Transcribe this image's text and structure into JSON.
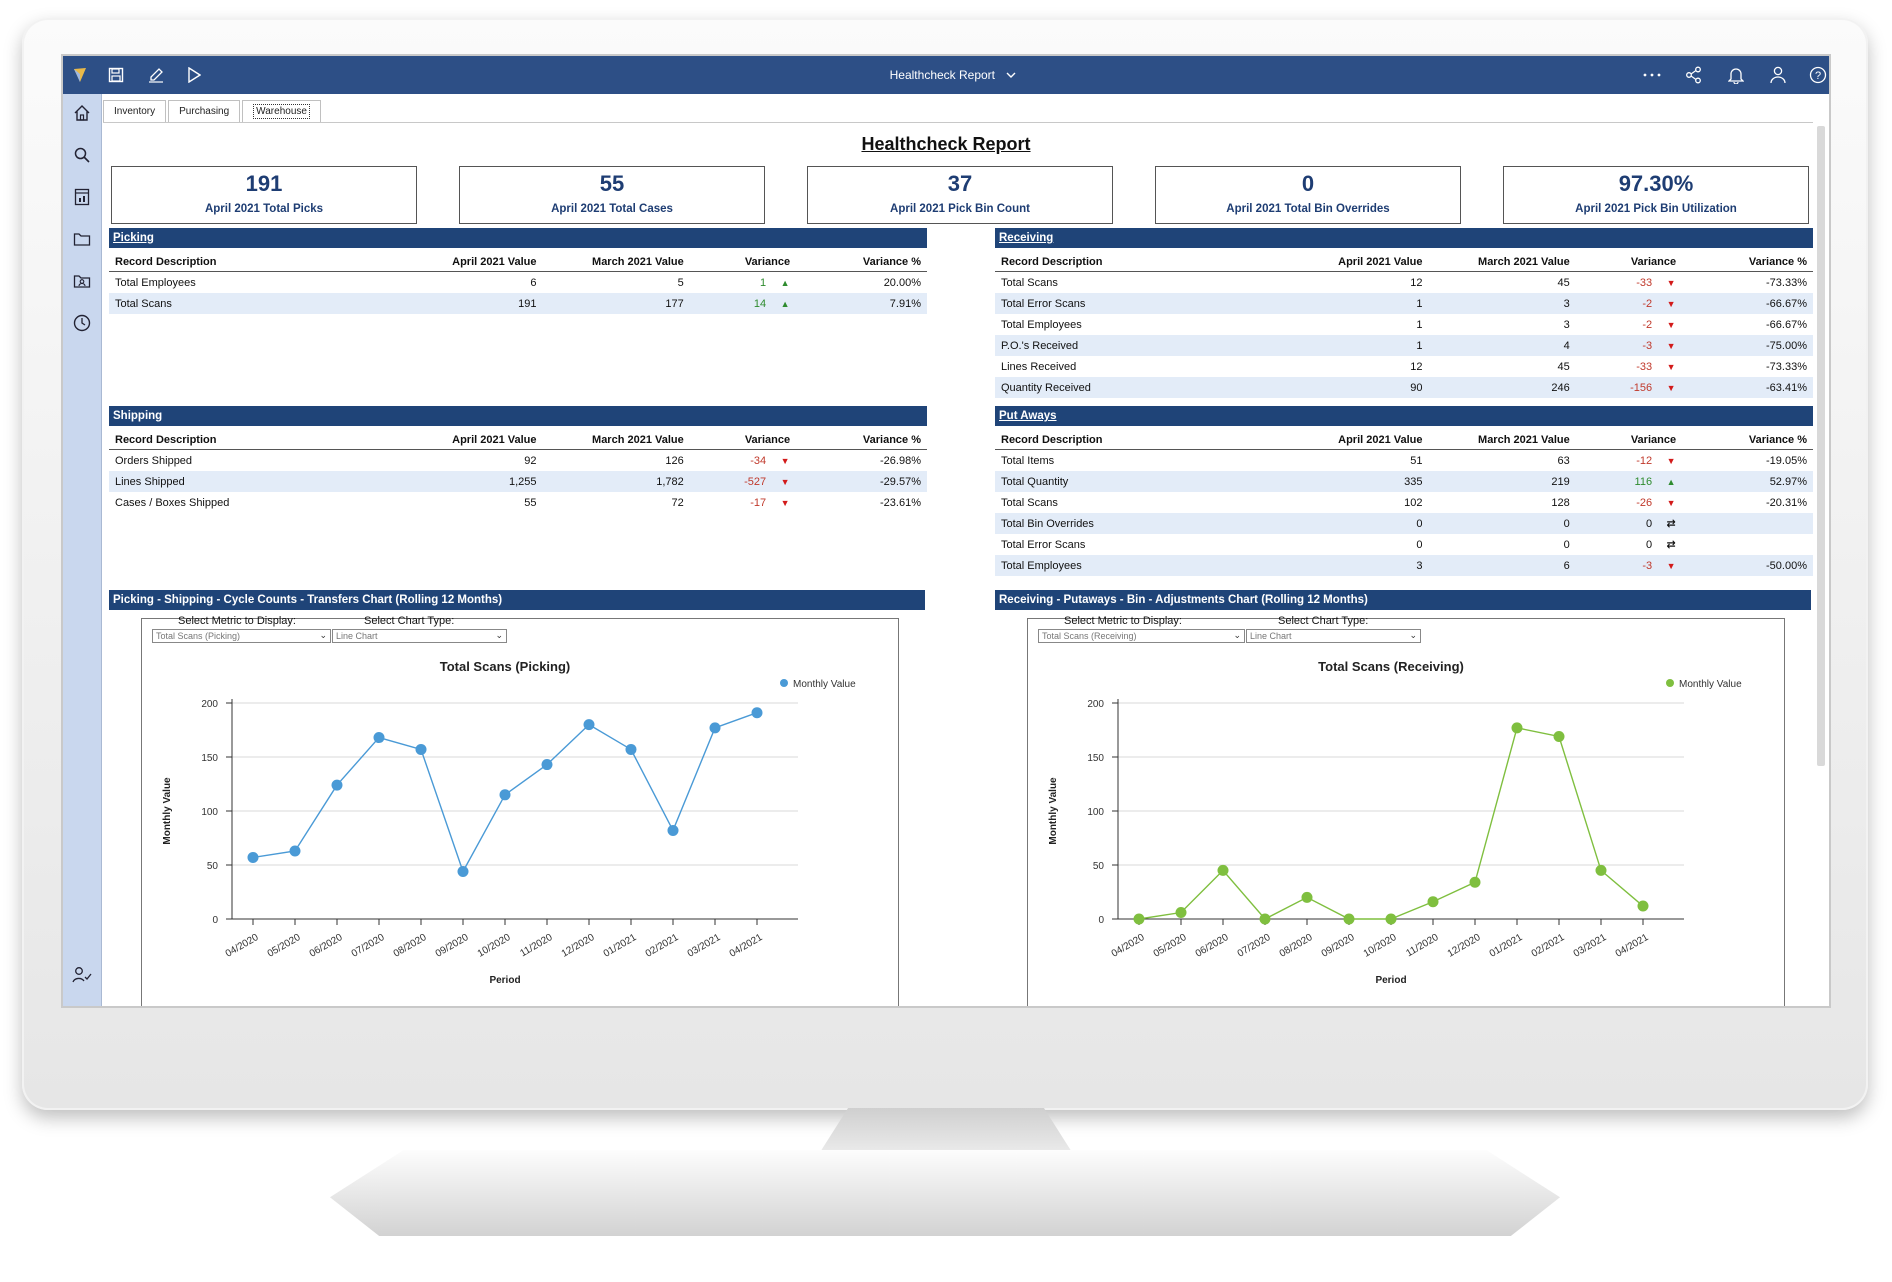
{
  "app": {
    "title": "Healthcheck Report"
  },
  "tabs": [
    "Inventory",
    "Purchasing",
    "Warehouse"
  ],
  "report_title": "Healthcheck Report",
  "kpis": [
    {
      "value": "191",
      "label": "April 2021 Total Picks"
    },
    {
      "value": "55",
      "label": "April 2021 Total Cases"
    },
    {
      "value": "37",
      "label": "April 2021 Pick Bin Count"
    },
    {
      "value": "0",
      "label": "April 2021 Total Bin Overrides"
    },
    {
      "value": "97.30%",
      "label": "April 2021 Pick Bin Utilization"
    }
  ],
  "columns": [
    "Record Description",
    "April 2021 Value",
    "March 2021 Value",
    "Variance",
    "Variance %"
  ],
  "sections": {
    "picking": {
      "title": "Picking",
      "rows": [
        {
          "desc": "Total Employees",
          "apr": "6",
          "mar": "5",
          "var": "1",
          "dir": "up",
          "pct": "20.00%"
        },
        {
          "desc": "Total Scans",
          "apr": "191",
          "mar": "177",
          "var": "14",
          "dir": "up",
          "pct": "7.91%"
        }
      ]
    },
    "shipping": {
      "title": "Shipping",
      "rows": [
        {
          "desc": "Orders Shipped",
          "apr": "92",
          "mar": "126",
          "var": "-34",
          "dir": "down",
          "pct": "-26.98%"
        },
        {
          "desc": "Lines Shipped",
          "apr": "1,255",
          "mar": "1,782",
          "var": "-527",
          "dir": "down",
          "pct": "-29.57%"
        },
        {
          "desc": "Cases / Boxes Shipped",
          "apr": "55",
          "mar": "72",
          "var": "-17",
          "dir": "down",
          "pct": "-23.61%"
        }
      ]
    },
    "receiving": {
      "title": "Receiving",
      "rows": [
        {
          "desc": "Total Scans",
          "apr": "12",
          "mar": "45",
          "var": "-33",
          "dir": "down",
          "pct": "-73.33%"
        },
        {
          "desc": "Total Error Scans",
          "apr": "1",
          "mar": "3",
          "var": "-2",
          "dir": "down",
          "pct": "-66.67%"
        },
        {
          "desc": "Total Employees",
          "apr": "1",
          "mar": "3",
          "var": "-2",
          "dir": "down",
          "pct": "-66.67%"
        },
        {
          "desc": "P.O.'s Received",
          "apr": "1",
          "mar": "4",
          "var": "-3",
          "dir": "down",
          "pct": "-75.00%"
        },
        {
          "desc": "Lines Received",
          "apr": "12",
          "mar": "45",
          "var": "-33",
          "dir": "down",
          "pct": "-73.33%"
        },
        {
          "desc": "Quantity Received",
          "apr": "90",
          "mar": "246",
          "var": "-156",
          "dir": "down",
          "pct": "-63.41%"
        }
      ]
    },
    "putaways": {
      "title": "Put Aways",
      "rows": [
        {
          "desc": "Total Items",
          "apr": "51",
          "mar": "63",
          "var": "-12",
          "dir": "down",
          "pct": "-19.05%"
        },
        {
          "desc": "Total Quantity",
          "apr": "335",
          "mar": "219",
          "var": "116",
          "dir": "up",
          "pct": "52.97%"
        },
        {
          "desc": "Total Scans",
          "apr": "102",
          "mar": "128",
          "var": "-26",
          "dir": "down",
          "pct": "-20.31%"
        },
        {
          "desc": "Total Bin Overrides",
          "apr": "0",
          "mar": "0",
          "var": "0",
          "dir": "flat",
          "pct": ""
        },
        {
          "desc": "Total Error Scans",
          "apr": "0",
          "mar": "0",
          "var": "0",
          "dir": "flat",
          "pct": ""
        },
        {
          "desc": "Total Employees",
          "apr": "3",
          "mar": "6",
          "var": "-3",
          "dir": "down",
          "pct": "-50.00%"
        }
      ]
    }
  },
  "chart_panels": {
    "left": {
      "title": "Picking - Shipping - Cycle Counts - Transfers Chart (Rolling 12 Months)",
      "metric_label": "Select Metric to Display:",
      "metric_value": "Total Scans (Picking)",
      "type_label": "Select Chart Type:",
      "type_value": "Line Chart"
    },
    "right": {
      "title": "Receiving - Putaways - Bin - Adjustments Chart (Rolling 12 Months)",
      "metric_label": "Select Metric to Display:",
      "metric_value": "Total Scans (Receiving)",
      "type_label": "Select Chart Type:",
      "type_value": "Line Chart"
    }
  },
  "colors": {
    "primary": "#1f4478",
    "topbar": "#2d4f86",
    "sidebar": "#c9d7ee",
    "row_alt": "#e3ecf8",
    "blue_series": "#4a9ad6",
    "green_series": "#7fbf3f",
    "negative": "#c0392b",
    "positive": "#2e8b2e"
  },
  "icons": {
    "topbar": [
      "app-logo-icon",
      "save-icon",
      "edit-icon",
      "run-icon",
      "more-icon",
      "share-icon",
      "bell-icon",
      "user-icon",
      "help-icon"
    ],
    "sidebar": [
      "home-icon",
      "search-icon",
      "report-icon",
      "folder-icon",
      "contacts-icon",
      "clock-icon",
      "user-settings-icon"
    ]
  },
  "chart_data": [
    {
      "type": "line",
      "title": "Total Scans (Picking)",
      "xlabel": "Period",
      "ylabel": "Monthly Value",
      "ylim": [
        0,
        200
      ],
      "yticks": [
        0,
        50,
        100,
        150,
        200
      ],
      "categories": [
        "04/2020",
        "05/2020",
        "06/2020",
        "07/2020",
        "08/2020",
        "09/2020",
        "10/2020",
        "11/2020",
        "12/2020",
        "01/2021",
        "02/2021",
        "03/2021",
        "04/2021"
      ],
      "series": [
        {
          "name": "Monthly Value",
          "color": "#4a9ad6",
          "values": [
            57,
            63,
            124,
            168,
            157,
            44,
            115,
            143,
            180,
            157,
            82,
            177,
            191
          ]
        }
      ],
      "legend": "top-right",
      "grid": true
    },
    {
      "type": "line",
      "title": "Total Scans (Receiving)",
      "xlabel": "Period",
      "ylabel": "Monthly Value",
      "ylim": [
        0,
        200
      ],
      "yticks": [
        0,
        50,
        100,
        150,
        200
      ],
      "categories": [
        "04/2020",
        "05/2020",
        "06/2020",
        "07/2020",
        "08/2020",
        "09/2020",
        "10/2020",
        "11/2020",
        "12/2020",
        "01/2021",
        "02/2021",
        "03/2021",
        "04/2021"
      ],
      "series": [
        {
          "name": "Monthly Value",
          "color": "#7fbf3f",
          "values": [
            0,
            6,
            45,
            0,
            20,
            0,
            0,
            16,
            34,
            177,
            169,
            45,
            12
          ]
        }
      ],
      "legend": "top-right",
      "grid": true
    }
  ]
}
